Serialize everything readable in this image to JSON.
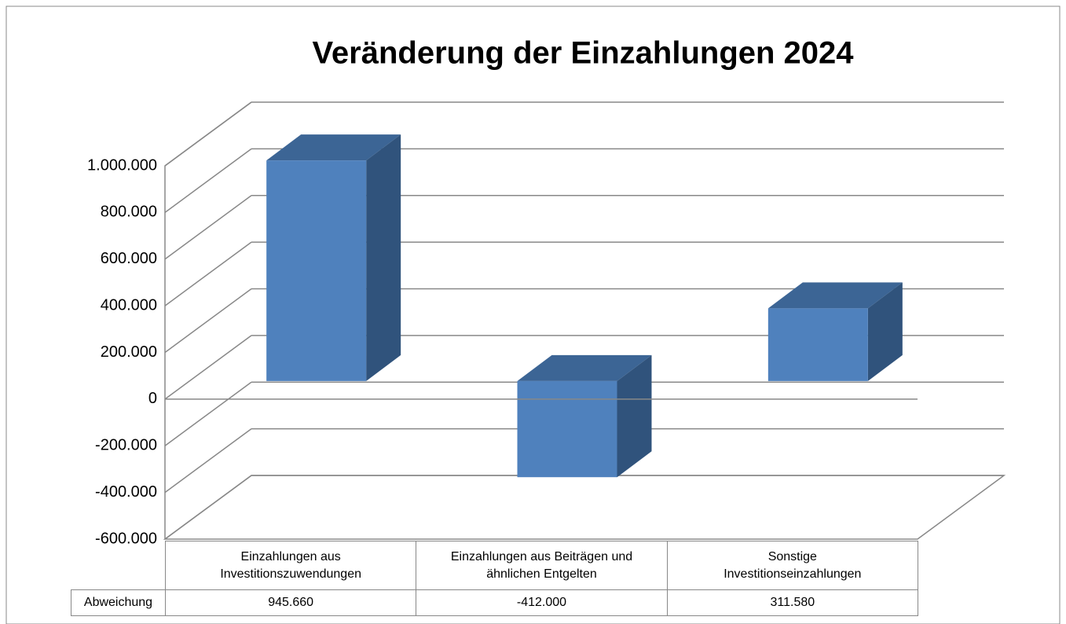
{
  "chart_data": {
    "type": "bar3d",
    "title": "Veränderung der Einzahlungen 2024",
    "categories": [
      "Einzahlungen aus Investitionszuwendungen",
      "Einzahlungen aus Beiträgen und ähnlichen Entgelten",
      "Sonstige Investitionseinzahlungen"
    ],
    "series": [
      {
        "name": "Abweichung",
        "color": "#4f81bd",
        "values": [
          945660,
          -412000,
          311580
        ],
        "value_labels": [
          "945.660",
          "-412.000",
          "311.580"
        ]
      }
    ],
    "ylim": [
      -600000,
      1000000
    ],
    "yticks": [
      {
        "value": -600000,
        "label": "-600.000"
      },
      {
        "value": -400000,
        "label": "-400.000"
      },
      {
        "value": -200000,
        "label": "-200.000"
      },
      0,
      {
        "value": 200000,
        "label": "200.000"
      },
      {
        "value": 400000,
        "label": "400.000"
      },
      {
        "value": 600000,
        "label": "600.000"
      },
      {
        "value": 800000,
        "label": "800.000"
      },
      {
        "value": 1000000,
        "label": "1.000.000"
      }
    ],
    "grid": true
  }
}
